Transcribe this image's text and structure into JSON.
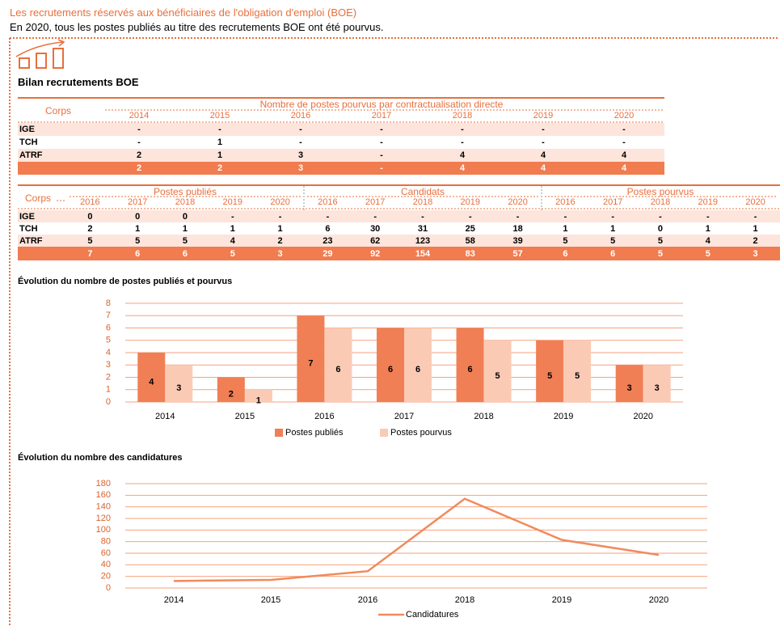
{
  "header": {
    "title": "Les recrutements réservés aux bénéficiaires de l'obligation d'emploi (BOE)",
    "subtitle": "En 2020, tous les postes publiés au titre des recrutements BOE ont été pourvus.",
    "section": "Bilan recrutements BOE"
  },
  "table1": {
    "corps": "Corps",
    "group": "Nombre de postes pourvus par contractualisation directe",
    "years": [
      2014,
      2015,
      2016,
      2017,
      2018,
      2019,
      2020
    ],
    "rows": [
      {
        "label": "IGE",
        "cells": [
          "-",
          "-",
          "-",
          "-",
          "-",
          "-",
          "-"
        ]
      },
      {
        "label": "TCH",
        "cells": [
          "-",
          1,
          "-",
          "-",
          "-",
          "-",
          "-"
        ]
      },
      {
        "label": "ATRF",
        "cells": [
          2,
          1,
          3,
          "-",
          4,
          4,
          4
        ]
      }
    ],
    "total": [
      2,
      2,
      3,
      "-",
      4,
      4,
      4
    ]
  },
  "table2": {
    "corps": "Corps",
    "groups": [
      {
        "name": "Postes publiés",
        "years": [
          2016,
          2017,
          2018,
          2019,
          2020
        ]
      },
      {
        "name": "Candidats",
        "years": [
          2016,
          2017,
          2018,
          2019,
          2020
        ]
      },
      {
        "name": "Postes pourvus",
        "years": [
          2016,
          2017,
          2018,
          2019,
          2020
        ]
      }
    ],
    "rows": [
      {
        "label": "IGE",
        "cells": [
          0,
          0,
          0,
          "-",
          "-",
          "-",
          "-",
          "-",
          "-",
          "-",
          "-",
          "-",
          "-",
          "-",
          "-"
        ]
      },
      {
        "label": "TCH",
        "cells": [
          2,
          1,
          1,
          1,
          1,
          6,
          30,
          31,
          25,
          18,
          1,
          1,
          0,
          1,
          1
        ]
      },
      {
        "label": "ATRF",
        "cells": [
          5,
          5,
          5,
          4,
          2,
          23,
          62,
          123,
          58,
          39,
          5,
          5,
          5,
          4,
          2
        ]
      }
    ],
    "total": [
      7,
      6,
      6,
      5,
      3,
      29,
      92,
      154,
      83,
      57,
      6,
      6,
      5,
      5,
      3
    ]
  },
  "chart_data": [
    {
      "type": "bar",
      "title": "Évolution du nombre de postes publiés et pourvus",
      "categories": [
        "2014",
        "2015",
        "2016",
        "2017",
        "2018",
        "2019",
        "2020"
      ],
      "series": [
        {
          "name": "Postes publiés",
          "color": "#f07f55",
          "values": [
            4,
            2,
            7,
            6,
            6,
            5,
            3
          ]
        },
        {
          "name": "Postes pourvus",
          "color": "#fbcab5",
          "values": [
            3,
            1,
            6,
            6,
            5,
            5,
            3
          ]
        }
      ],
      "ylim": [
        0,
        8
      ],
      "yticks": [
        0,
        1,
        2,
        3,
        4,
        5,
        6,
        7,
        8
      ],
      "grid": true,
      "legend": "bottom"
    },
    {
      "type": "line",
      "title": "Évolution du nombre des candidatures",
      "categories": [
        "2014",
        "2015",
        "2016",
        "2018",
        "2019",
        "2020"
      ],
      "series": [
        {
          "name": "Candidatures",
          "color": "#f08a5d",
          "values": [
            12,
            14,
            29,
            154,
            83,
            57
          ]
        }
      ],
      "ylim": [
        0,
        180
      ],
      "yticks": [
        0,
        20,
        40,
        60,
        80,
        100,
        120,
        140,
        160,
        180
      ],
      "grid": true,
      "legend": "bottom"
    }
  ]
}
